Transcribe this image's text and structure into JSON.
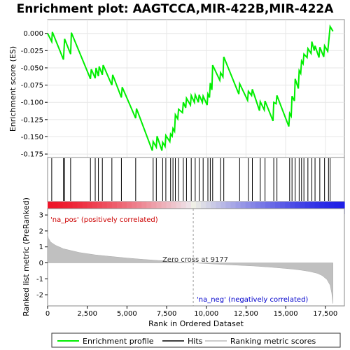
{
  "chart_data": {
    "type": "line",
    "title": "Enrichment plot: AAGTCCA,MIR-422B,MIR-422A",
    "es_panel": {
      "ylabel": "Enrichment score (ES)",
      "ylim": [
        -0.18,
        0.02
      ],
      "yticks": [
        0.0,
        -0.025,
        -0.05,
        -0.075,
        -0.1,
        -0.125,
        -0.15,
        -0.175
      ],
      "ytick_labels": [
        "0.000",
        "-0.025",
        "-0.050",
        "-0.075",
        "-0.100",
        "-0.125",
        "-0.150",
        "-0.175"
      ],
      "series": [
        {
          "name": "Enrichment profile",
          "color": "#00ee00",
          "x": [
            0,
            260,
            300,
            1000,
            1070,
            1450,
            1500,
            2700,
            2750,
            3000,
            3050,
            3200,
            3250,
            3450,
            3500,
            4050,
            4100,
            4650,
            4700,
            5550,
            5600,
            6600,
            6650,
            6850,
            6900,
            7200,
            7250,
            7400,
            7450,
            7700,
            7750,
            7850,
            7900,
            8000,
            8050,
            8200,
            8250,
            8500,
            8550,
            8700,
            8750,
            9000,
            9050,
            9250,
            9300,
            9500,
            9550,
            9750,
            9800,
            10050,
            10100,
            10200,
            10250,
            10350,
            10400,
            10850,
            10900,
            11050,
            11100,
            12050,
            12100,
            12600,
            12650,
            12850,
            12900,
            13350,
            13400,
            13650,
            13700,
            14200,
            14250,
            14400,
            14450,
            15200,
            15250,
            15350,
            15400,
            15550,
            15600,
            15800,
            15850,
            15950,
            16000,
            16100,
            16150,
            16350,
            16400,
            16600,
            16650,
            16800,
            16850,
            17100,
            17150,
            17400,
            17450,
            17650,
            17700,
            17750,
            17800,
            17980
          ],
          "y": [
            0.0,
            -0.012,
            0.002,
            -0.038,
            -0.008,
            -0.03,
            0.001,
            -0.066,
            -0.052,
            -0.065,
            -0.05,
            -0.062,
            -0.048,
            -0.06,
            -0.046,
            -0.075,
            -0.06,
            -0.093,
            -0.078,
            -0.123,
            -0.109,
            -0.17,
            -0.157,
            -0.165,
            -0.149,
            -0.17,
            -0.158,
            -0.164,
            -0.148,
            -0.157,
            -0.146,
            -0.149,
            -0.138,
            -0.142,
            -0.118,
            -0.124,
            -0.11,
            -0.115,
            -0.1,
            -0.108,
            -0.094,
            -0.104,
            -0.09,
            -0.1,
            -0.089,
            -0.1,
            -0.089,
            -0.1,
            -0.091,
            -0.104,
            -0.088,
            -0.093,
            -0.072,
            -0.082,
            -0.046,
            -0.068,
            -0.057,
            -0.063,
            -0.034,
            -0.088,
            -0.073,
            -0.097,
            -0.084,
            -0.09,
            -0.081,
            -0.112,
            -0.099,
            -0.111,
            -0.098,
            -0.127,
            -0.1,
            -0.102,
            -0.09,
            -0.135,
            -0.116,
            -0.12,
            -0.091,
            -0.098,
            -0.066,
            -0.08,
            -0.054,
            -0.058,
            -0.04,
            -0.044,
            -0.03,
            -0.035,
            -0.022,
            -0.029,
            -0.012,
            -0.025,
            -0.018,
            -0.035,
            -0.02,
            -0.034,
            -0.018,
            -0.026,
            -0.015,
            -0.002,
            0.01,
            0.003
          ]
        }
      ]
    },
    "hits_panel": {
      "hit_positions": [
        260,
        1000,
        1070,
        1450,
        2700,
        3000,
        3200,
        3450,
        4050,
        4650,
        5550,
        6650,
        6850,
        7250,
        7450,
        7750,
        7900,
        8050,
        8250,
        8550,
        8750,
        9050,
        9300,
        9550,
        9800,
        10100,
        10250,
        10400,
        10900,
        11100,
        12100,
        12650,
        12900,
        13400,
        13700,
        14250,
        14450,
        15250,
        15400,
        15600,
        15850,
        16000,
        16150,
        16400,
        16650,
        16850,
        17150,
        17450,
        17700,
        17800
      ]
    },
    "metric_panel": {
      "ylabel": "Ranked list metric (PreRanked)",
      "xlabel": "Rank in Ordered Dataset",
      "ylim": [
        -2.7,
        3.4
      ],
      "yticks": [
        3,
        2,
        1,
        0,
        -1,
        -2
      ],
      "xlim": [
        0,
        18700
      ],
      "xticks": [
        0,
        2500,
        5000,
        7500,
        10000,
        12500,
        15000,
        17500
      ],
      "xtick_labels": [
        "0",
        "2,500",
        "5,000",
        "7,500",
        "10,000",
        "12,500",
        "15,000",
        "17,500"
      ],
      "x": [
        0,
        50,
        200,
        500,
        1000,
        2000,
        3000,
        4000,
        5000,
        6000,
        7000,
        8000,
        9177,
        10000,
        11000,
        12000,
        13000,
        14000,
        15000,
        15500,
        16000,
        16500,
        17000,
        17300,
        17600,
        17800,
        17900,
        17980
      ],
      "values": [
        1.8,
        1.55,
        1.3,
        1.1,
        0.88,
        0.65,
        0.5,
        0.4,
        0.3,
        0.22,
        0.15,
        0.08,
        0.0,
        -0.05,
        -0.1,
        -0.15,
        -0.2,
        -0.27,
        -0.35,
        -0.4,
        -0.46,
        -0.54,
        -0.66,
        -0.8,
        -1.05,
        -1.4,
        -1.9,
        -2.55
      ],
      "zero_cross": 9177,
      "annotations": {
        "pos": "'na_pos' (positively correlated)",
        "neg": "'na_neg' (negatively correlated)",
        "zero": "Zero cross at 9177"
      }
    },
    "legend": [
      {
        "label": "Enrichment profile",
        "color": "#00ee00"
      },
      {
        "label": "Hits",
        "color": "#000000"
      },
      {
        "label": "Ranking metric scores",
        "color": "#bbbbbb"
      }
    ]
  }
}
